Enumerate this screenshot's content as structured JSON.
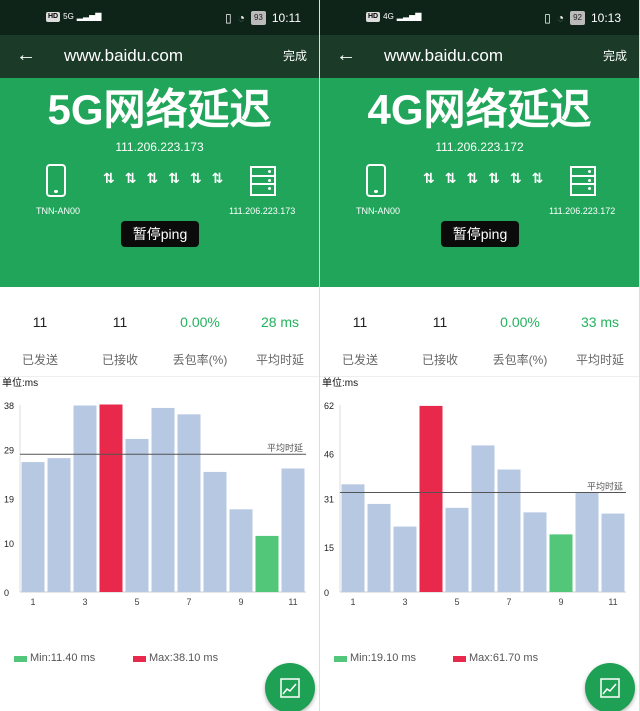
{
  "colors": {
    "header": "#21a55a",
    "toolbar": "#1b3a28",
    "bar": "#b7c8e3",
    "max_bar": "#e8294c",
    "min_bar": "#52c77a",
    "accent_text": "#22b35e"
  },
  "labels": {
    "sent": "已发送",
    "received": "已接收",
    "loss": "丢包率(%)",
    "avg": "平均时延",
    "unit": "单位:ms",
    "avg_line": "平均时延",
    "pause": "暂停ping",
    "done": "完成",
    "url": "www.baidu.com"
  },
  "panels": [
    {
      "status": {
        "network": "5G",
        "battery": "93",
        "time": "10:11"
      },
      "title": "5G网络延迟",
      "ip": "111.206.223.173",
      "device": "TNN-AN00",
      "server_ip": "111.206.223.173",
      "stats": {
        "sent": "11",
        "received": "11",
        "loss": "0.00%",
        "avg": "28 ms"
      },
      "legend": {
        "min": "Min:11.40 ms",
        "max": "Max:38.10 ms"
      },
      "chart_data": {
        "type": "bar",
        "unit": "单位:ms",
        "categories": [
          1,
          2,
          3,
          4,
          5,
          6,
          7,
          8,
          9,
          10,
          11
        ],
        "x_tick_labels": [
          "1",
          "3",
          "5",
          "7",
          "9",
          "11"
        ],
        "y_ticks": [
          0,
          10,
          19,
          29,
          38
        ],
        "ylim": [
          0,
          38
        ],
        "values": [
          26.4,
          27.2,
          37.9,
          38.1,
          31.1,
          37.4,
          36.1,
          24.4,
          16.8,
          11.4,
          25.1
        ],
        "average": 28,
        "max_index": 3,
        "min_index": 9
      }
    },
    {
      "status": {
        "network": "4G",
        "battery": "92",
        "time": "10:13"
      },
      "title": "4G网络延迟",
      "ip": "111.206.223.172",
      "device": "TNN-AN00",
      "server_ip": "111.206.223.172",
      "stats": {
        "sent": "11",
        "received": "11",
        "loss": "0.00%",
        "avg": "33 ms"
      },
      "legend": {
        "min": "Min:19.10 ms",
        "max": "Max:61.70 ms"
      },
      "chart_data": {
        "type": "bar",
        "unit": "单位:ms",
        "categories": [
          1,
          2,
          3,
          4,
          5,
          6,
          7,
          8,
          9,
          10,
          11
        ],
        "x_tick_labels": [
          "1",
          "3",
          "5",
          "7",
          "9",
          "11"
        ],
        "y_ticks": [
          0,
          15,
          31,
          46,
          62
        ],
        "ylim": [
          0,
          62
        ],
        "values": [
          35.7,
          29.2,
          21.7,
          61.7,
          27.9,
          48.6,
          40.6,
          26.4,
          19.1,
          33.1,
          26.0
        ],
        "average": 33,
        "max_index": 3,
        "min_index": 8
      }
    }
  ]
}
